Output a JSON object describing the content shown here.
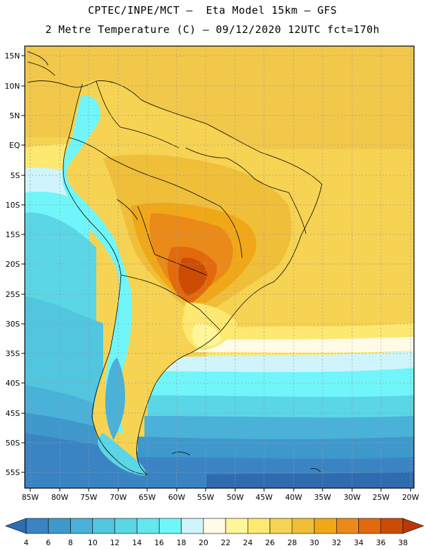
{
  "header": {
    "line1": "CPTEC/INPE/MCT –  Eta Model 15km – GFS",
    "line2": "2 Metre Temperature (C) – 09/12/2020 12UTC fct=170h"
  },
  "map": {
    "lat_ticks": [
      "15N",
      "10N",
      "5N",
      "EQ",
      "5S",
      "10S",
      "15S",
      "20S",
      "25S",
      "30S",
      "35S",
      "40S",
      "45S",
      "50S",
      "55S"
    ],
    "lon_ticks": [
      "85W",
      "80W",
      "75W",
      "70W",
      "65W",
      "60W",
      "55W",
      "50W",
      "45W",
      "40W",
      "35W",
      "30W",
      "25W",
      "20W"
    ]
  },
  "colorbar": {
    "labels": [
      "4",
      "6",
      "8",
      "10",
      "12",
      "14",
      "16",
      "18",
      "20",
      "22",
      "24",
      "26",
      "28",
      "30",
      "32",
      "34",
      "36",
      "38"
    ],
    "colors": [
      "#2e6cb0",
      "#3a84c4",
      "#3e98cc",
      "#4ab1d8",
      "#52c5df",
      "#5ad6e6",
      "#64e6ee",
      "#70f6fa",
      "#cff4fb",
      "#fffbe6",
      "#fff59a",
      "#fde872",
      "#f6d352",
      "#f0bf3a",
      "#f0a818",
      "#ea8a18",
      "#e36a0c",
      "#cc4c06",
      "#b8380a"
    ]
  }
}
